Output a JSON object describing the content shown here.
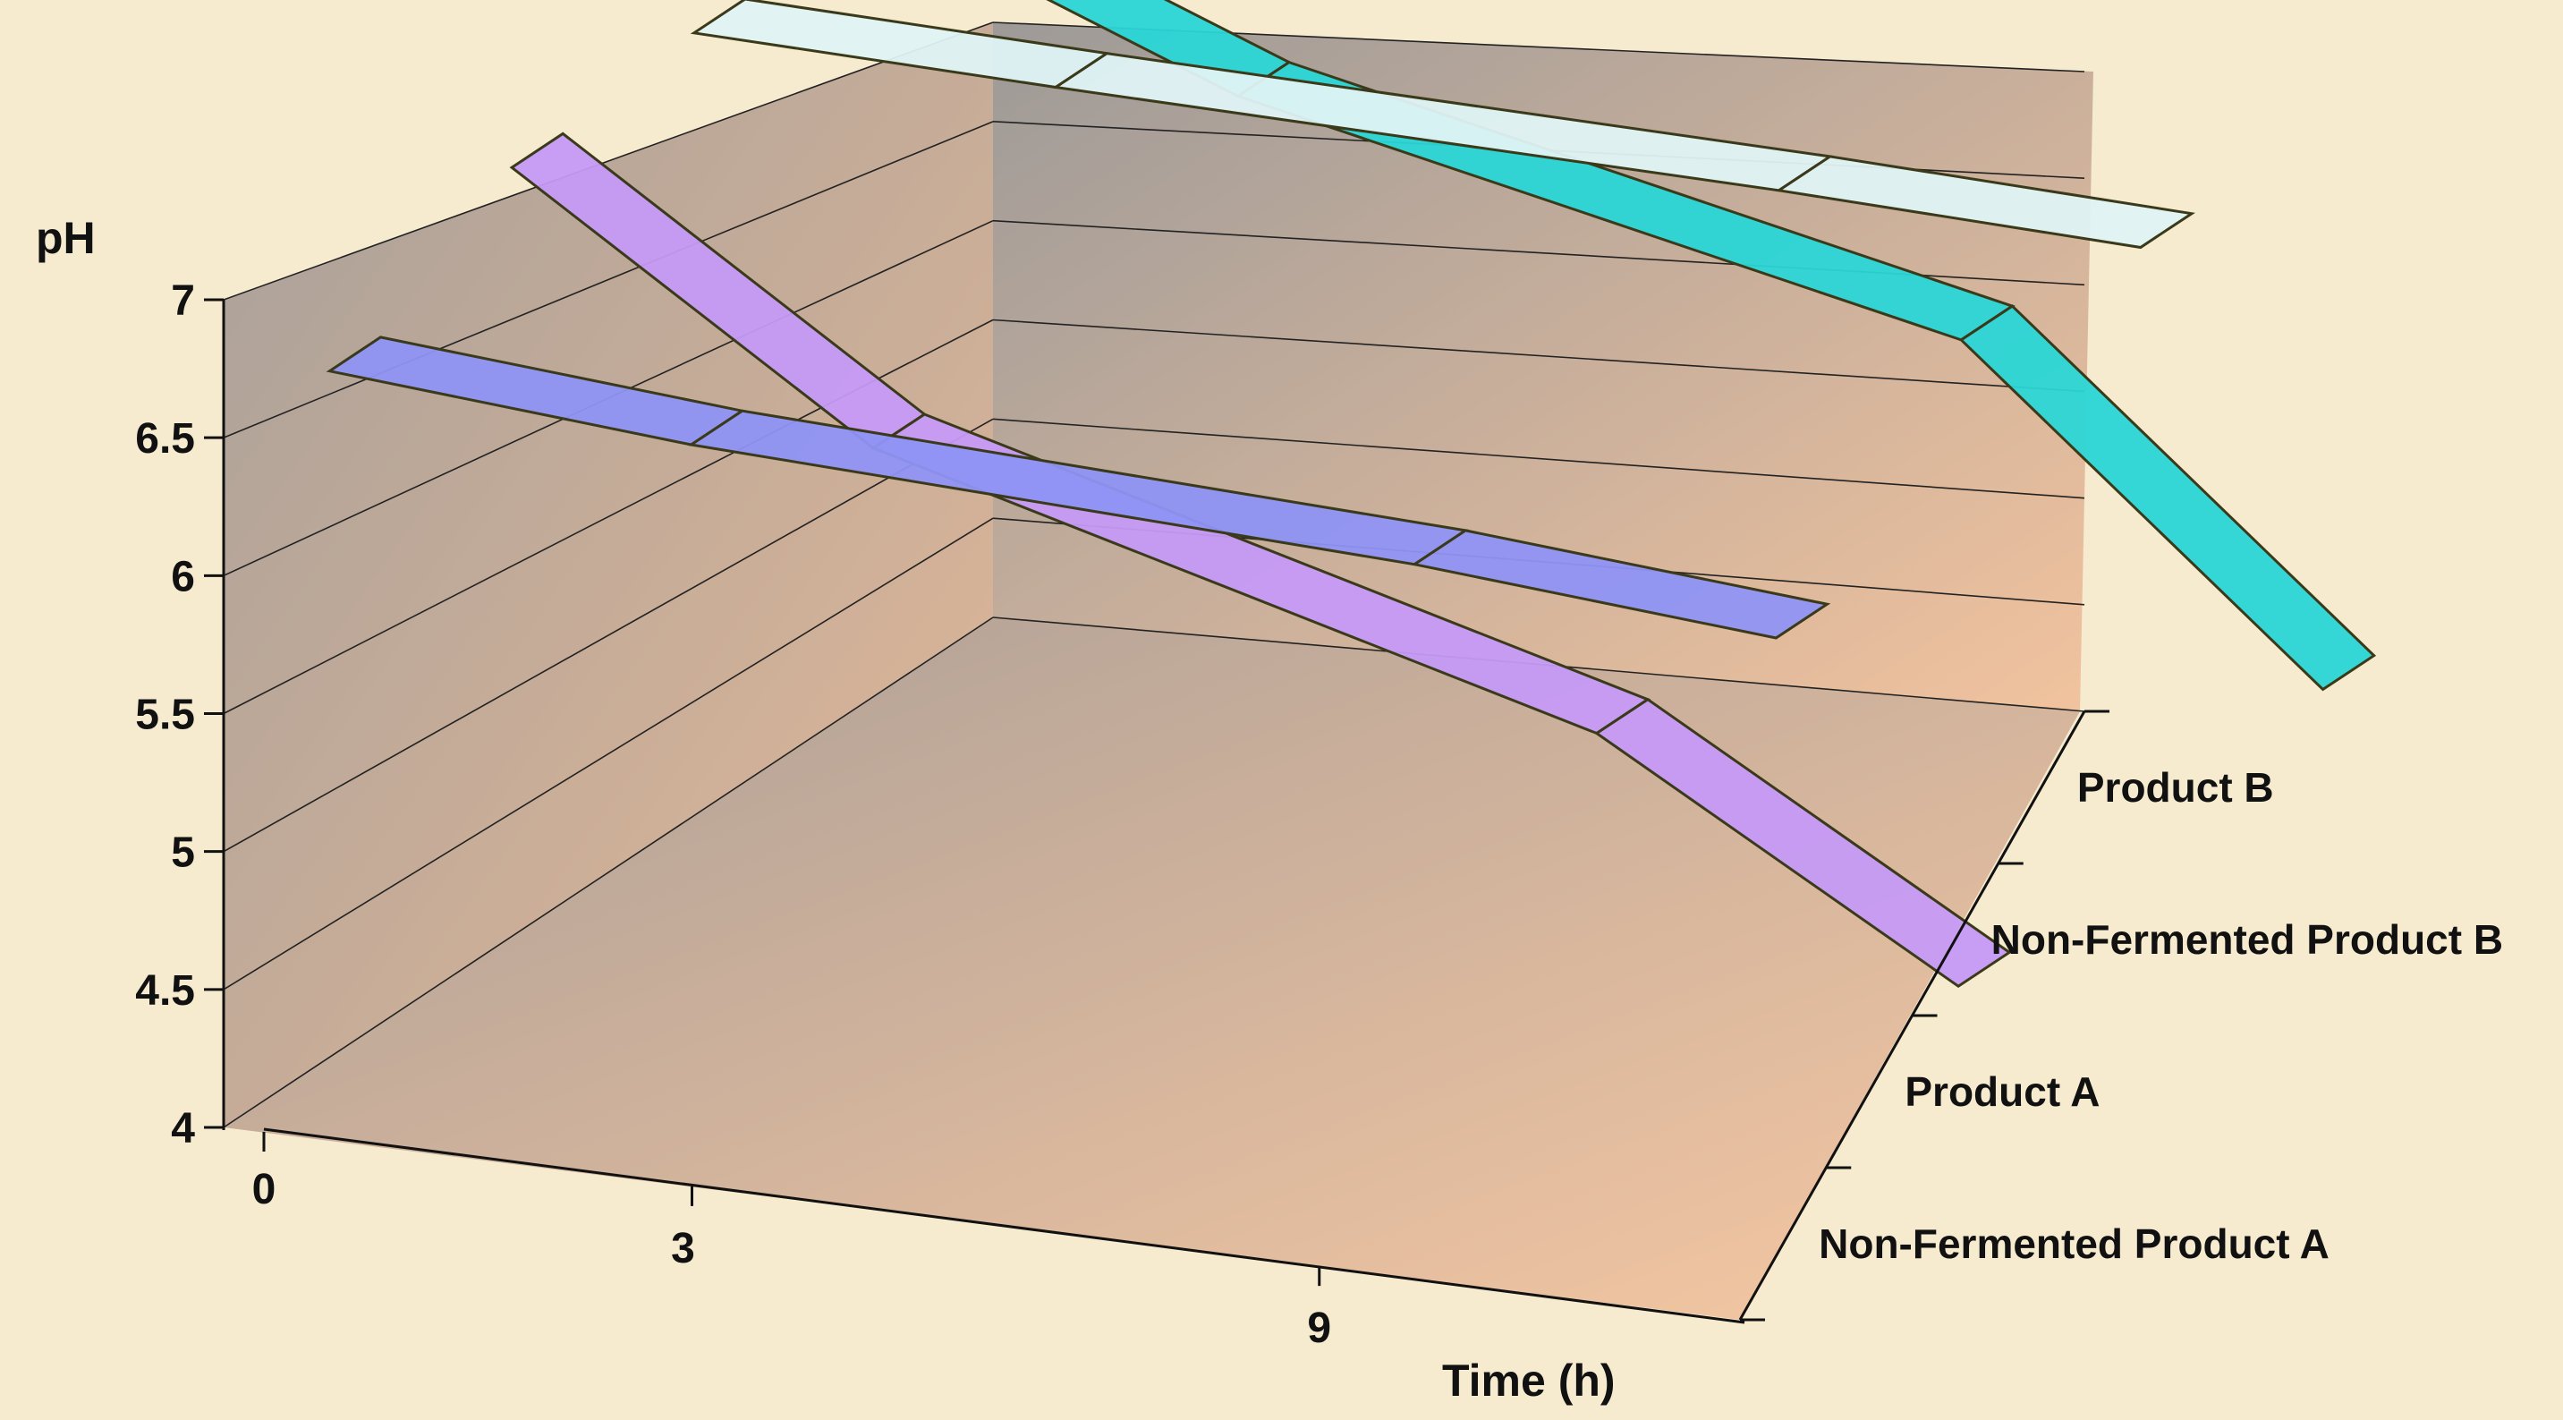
{
  "chart_data": {
    "type": "line",
    "subtype": "3d-ribbon",
    "title": "",
    "ylabel": "pH",
    "xlabel": "Time (h)",
    "ylim": [
      4,
      7
    ],
    "y_ticks": [
      "4",
      "4.5",
      "5",
      "5.5",
      "6",
      "6.5",
      "7"
    ],
    "x_ticks": [
      "0",
      "3",
      "9"
    ],
    "x": [
      0,
      3,
      9,
      12
    ],
    "series": [
      {
        "name": "Non-Fermented Product A",
        "values": [
          6.6,
          6.5,
          6.4,
          6.3
        ],
        "color": "#8f93f4"
      },
      {
        "name": "Product A",
        "values": [
          6.9,
          6.05,
          5.35,
          4.6
        ],
        "color": "#c59af6"
      },
      {
        "name": "Non-Fermented Product B",
        "values": [
          6.95,
          6.92,
          6.88,
          6.84
        ],
        "color": "#dff3f4"
      },
      {
        "name": "Product B",
        "values": [
          6.95,
          6.45,
          5.9,
          4.8
        ],
        "color": "#2ad6d6"
      }
    ],
    "grid": true,
    "legend": "depth-axis-labels",
    "colors": {
      "background": "#f6ebcf",
      "back_wall": "#c9a48c",
      "side_wall": "#b7a28f",
      "floor": "#d6ab8c",
      "axis": "#111111"
    }
  }
}
